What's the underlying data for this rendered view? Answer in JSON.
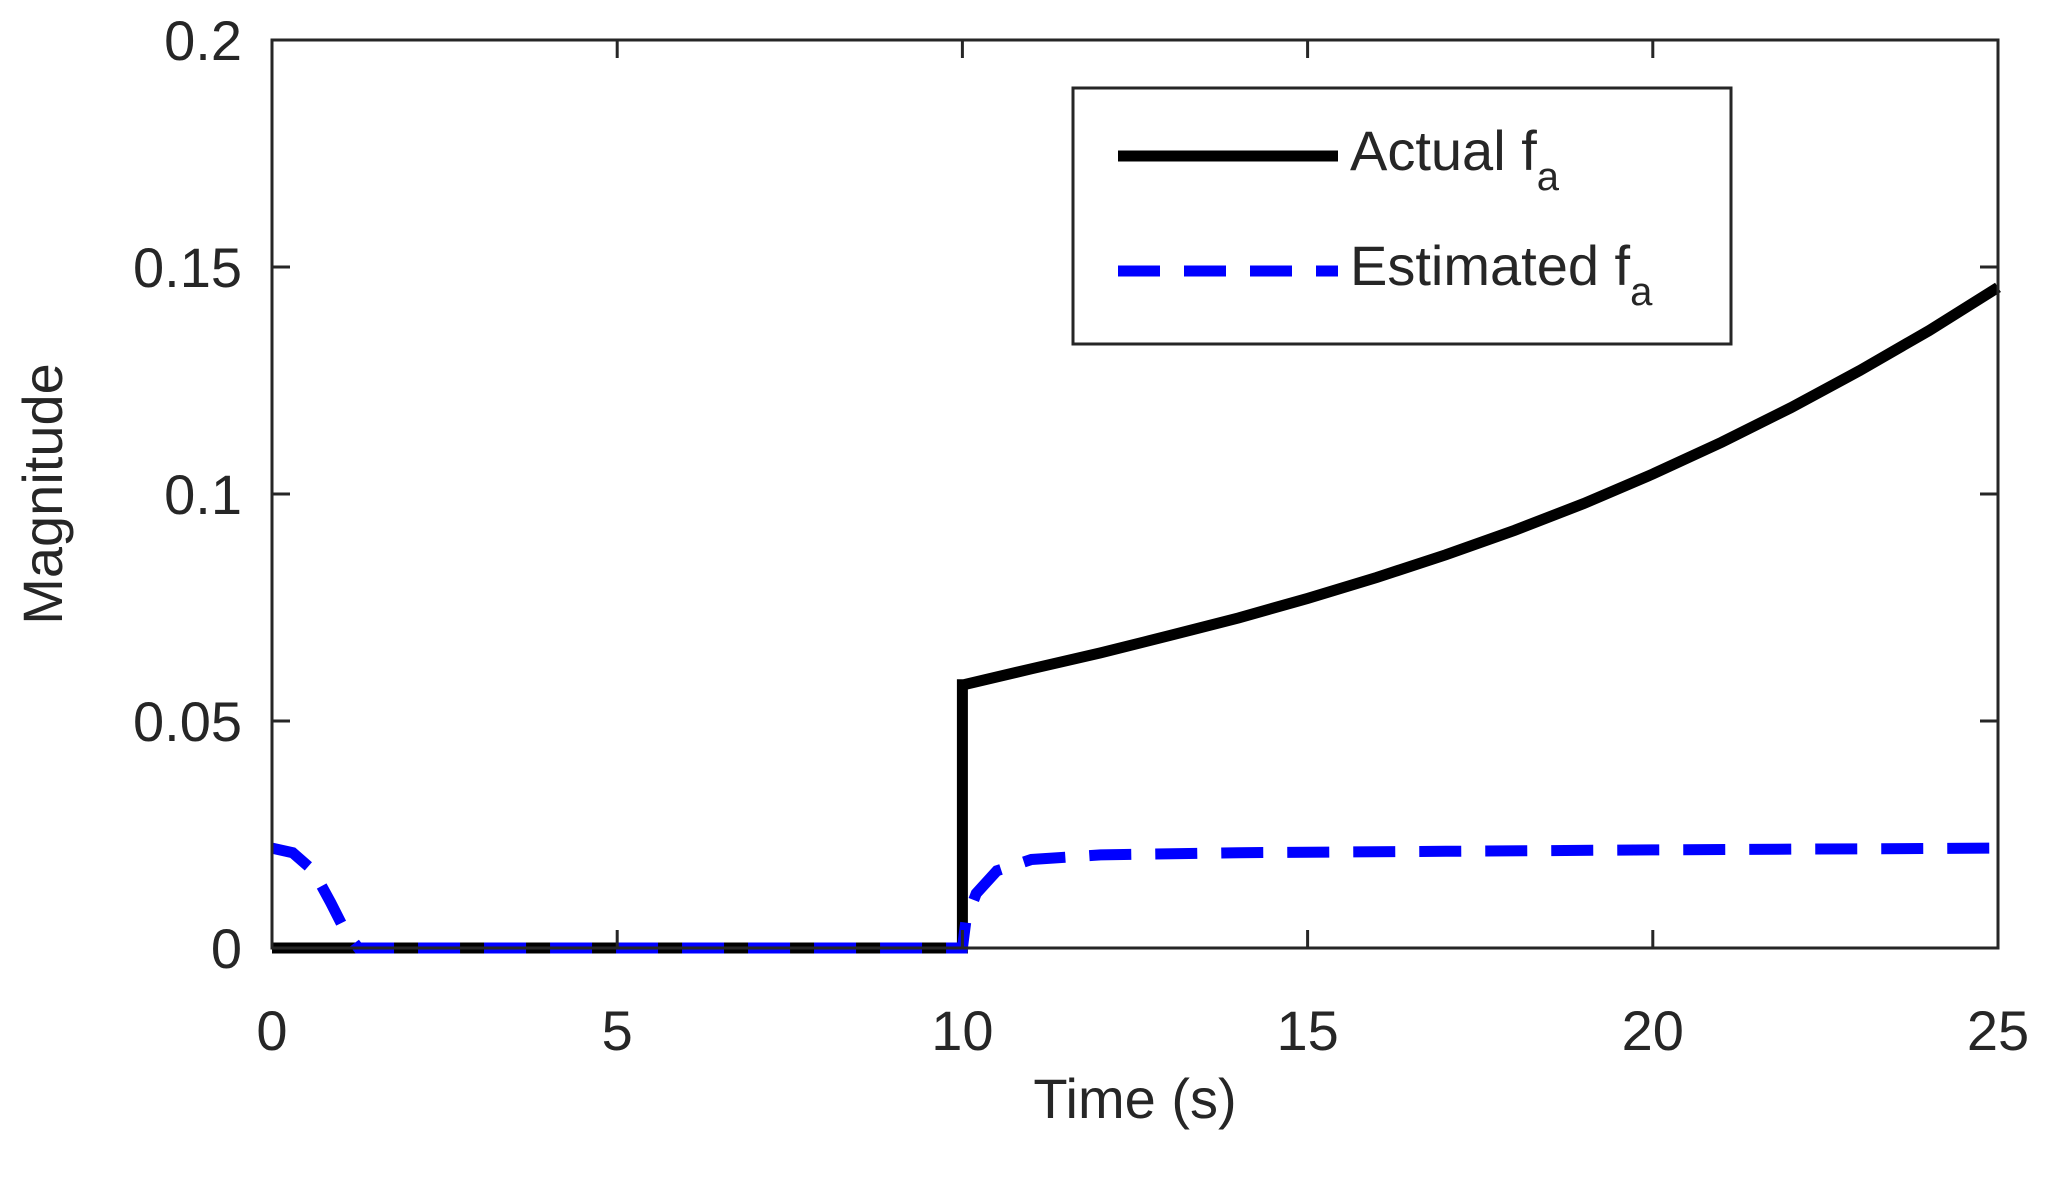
{
  "chart_data": {
    "type": "line",
    "title": "",
    "xlabel": "Time (s)",
    "ylabel": "Magnitude",
    "xlim": [
      0,
      25
    ],
    "ylim": [
      0,
      0.2
    ],
    "xticks": [
      0,
      5,
      10,
      15,
      20,
      25
    ],
    "xtick_labels": [
      "0",
      "5",
      "10",
      "15",
      "20",
      "25"
    ],
    "yticks": [
      0,
      0.05,
      0.1,
      0.15,
      0.2
    ],
    "ytick_labels": [
      "0",
      "0.05",
      "0.1",
      "0.15",
      "0.2"
    ],
    "grid": false,
    "legend_position": "top-right",
    "series": [
      {
        "name": "Actual f",
        "subscript": "a",
        "color": "#000000",
        "style": "solid",
        "x": [
          0,
          10,
          10,
          10.02,
          11,
          12,
          13,
          14,
          15,
          16,
          17,
          18,
          19,
          20,
          21,
          22,
          23,
          24,
          25
        ],
        "y": [
          0,
          0,
          0.058,
          0.058,
          0.0615,
          0.065,
          0.0688,
          0.0727,
          0.077,
          0.0816,
          0.0866,
          0.092,
          0.0979,
          0.1044,
          0.1114,
          0.119,
          0.1272,
          0.136,
          0.1455
        ]
      },
      {
        "name": "Estimated f",
        "subscript": "a",
        "color": "#0000ff",
        "style": "dashed",
        "x": [
          0,
          0.3,
          0.6,
          0.85,
          1.05,
          1.25,
          10,
          10.05,
          10.2,
          10.5,
          11,
          12,
          14,
          17,
          20,
          25
        ],
        "y": [
          0.022,
          0.021,
          0.017,
          0.01,
          0.004,
          0,
          0,
          0.006,
          0.012,
          0.017,
          0.0195,
          0.0205,
          0.021,
          0.0213,
          0.0216,
          0.022
        ]
      }
    ]
  }
}
